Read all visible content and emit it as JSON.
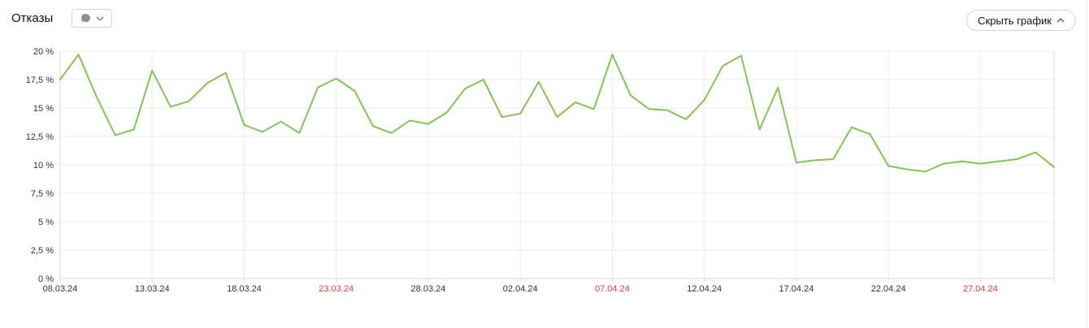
{
  "header": {
    "title": "Отказы",
    "metric_dropdown": {
      "icon": "comment-icon",
      "chevron": "chevron-down-icon"
    },
    "hide_chart_button": {
      "label": "Скрыть график",
      "chevron": "chevron-up-icon"
    }
  },
  "colors": {
    "line": "#85c356",
    "grid": "#ececec",
    "axis": "#d9d9d9",
    "label": "#333333",
    "weekend_label": "#d8443e"
  },
  "chart_data": {
    "type": "line",
    "title": "Отказы",
    "xlabel": "",
    "ylabel": "",
    "ylim": [
      0,
      20
    ],
    "ytick_step": 2.5,
    "ytick_labels": [
      "0 %",
      "2,5 %",
      "5 %",
      "7,5 %",
      "10 %",
      "12,5 %",
      "15 %",
      "17,5 %",
      "20 %"
    ],
    "grid": true,
    "legend_position": "none",
    "xtick_every": 5,
    "xticks": [
      {
        "label": "08.03.24",
        "weekend": false
      },
      {
        "label": "13.03.24",
        "weekend": false
      },
      {
        "label": "18.03.24",
        "weekend": false
      },
      {
        "label": "23.03.24",
        "weekend": true
      },
      {
        "label": "28.03.24",
        "weekend": false
      },
      {
        "label": "02.04.24",
        "weekend": false
      },
      {
        "label": "07.04.24",
        "weekend": true
      },
      {
        "label": "12.04.24",
        "weekend": false
      },
      {
        "label": "17.04.24",
        "weekend": false
      },
      {
        "label": "22.04.24",
        "weekend": false
      },
      {
        "label": "27.04.24",
        "weekend": true
      }
    ],
    "x": [
      "08.03.24",
      "09.03.24",
      "10.03.24",
      "11.03.24",
      "12.03.24",
      "13.03.24",
      "14.03.24",
      "15.03.24",
      "16.03.24",
      "17.03.24",
      "18.03.24",
      "19.03.24",
      "20.03.24",
      "21.03.24",
      "22.03.24",
      "23.03.24",
      "24.03.24",
      "25.03.24",
      "26.03.24",
      "27.03.24",
      "28.03.24",
      "29.03.24",
      "30.03.24",
      "31.03.24",
      "01.04.24",
      "02.04.24",
      "03.04.24",
      "04.04.24",
      "05.04.24",
      "06.04.24",
      "07.04.24",
      "08.04.24",
      "09.04.24",
      "10.04.24",
      "11.04.24",
      "12.04.24",
      "13.04.24",
      "14.04.24",
      "15.04.24",
      "16.04.24",
      "17.04.24",
      "18.04.24",
      "19.04.24",
      "20.04.24",
      "21.04.24",
      "22.04.24",
      "23.04.24",
      "24.04.24",
      "25.04.24",
      "26.04.24",
      "27.04.24",
      "28.04.24",
      "29.04.24",
      "30.04.24",
      "01.05.24"
    ],
    "series": [
      {
        "name": "Отказы, %",
        "color": "#85c356",
        "values": [
          17.5,
          19.7,
          15.9,
          12.6,
          13.1,
          18.3,
          15.1,
          15.6,
          17.2,
          18.1,
          13.5,
          12.9,
          13.8,
          12.8,
          16.8,
          17.6,
          16.5,
          13.4,
          12.8,
          13.9,
          13.6,
          14.6,
          16.7,
          17.5,
          14.2,
          14.5,
          17.3,
          14.2,
          15.5,
          14.9,
          19.7,
          16.1,
          14.9,
          14.8,
          14.0,
          15.7,
          18.7,
          19.6,
          13.1,
          16.8,
          10.2,
          10.4,
          10.5,
          13.3,
          12.7,
          9.9,
          9.6,
          9.4,
          10.1,
          10.3,
          10.1,
          10.3,
          10.5,
          11.1,
          9.8
        ]
      }
    ]
  }
}
